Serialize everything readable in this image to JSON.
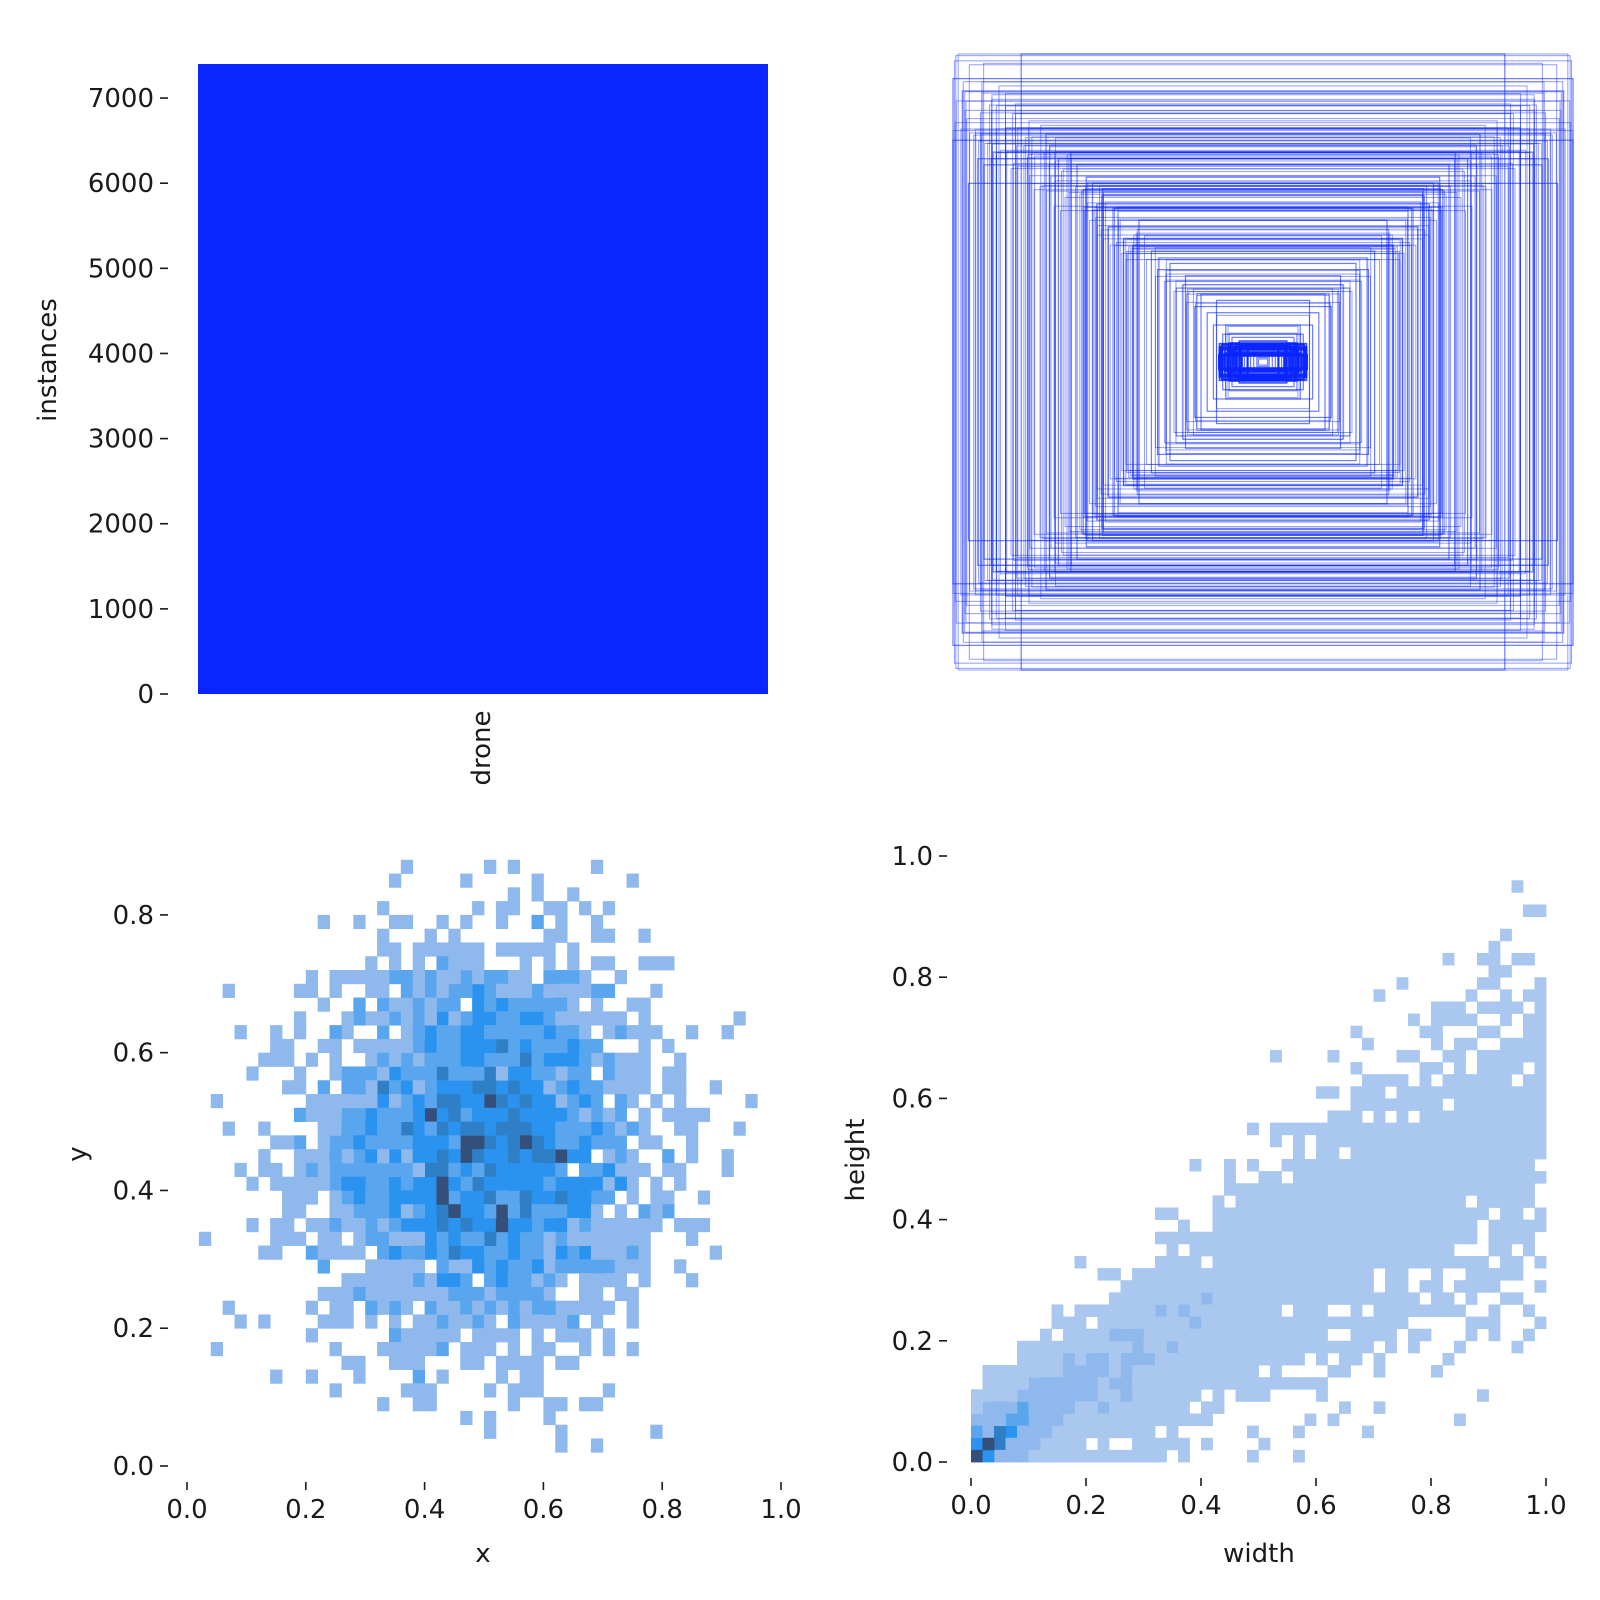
{
  "chart_data": [
    {
      "type": "bar",
      "categories": [
        "drone"
      ],
      "values": [
        7400
      ],
      "xlabel": "",
      "ylabel": "instances",
      "ylim": [
        0,
        7400
      ],
      "yticks": [
        0,
        1000,
        2000,
        3000,
        4000,
        5000,
        6000,
        7000
      ],
      "ytick_labels": [
        "0",
        "1000",
        "2000",
        "3000",
        "4000",
        "5000",
        "6000",
        "7000"
      ],
      "color": "#0a26ff",
      "grid": false
    },
    {
      "type": "scatter",
      "title": "",
      "description_only_visual": false,
      "box_color": "#0a26ff",
      "box_sizes": [
        [
          0.78,
          1.0
        ],
        [
          1.0,
          0.92
        ],
        [
          0.97,
          0.88
        ],
        [
          0.83,
          0.76
        ],
        [
          0.86,
          0.68
        ],
        [
          1.0,
          0.72
        ],
        [
          0.62,
          0.68
        ],
        [
          0.57,
          0.6
        ],
        [
          0.55,
          0.58
        ],
        [
          0.52,
          0.54
        ],
        [
          0.9,
          0.64
        ],
        [
          0.7,
          0.74
        ],
        [
          0.5,
          0.44
        ],
        [
          0.45,
          0.4
        ],
        [
          0.4,
          0.46
        ],
        [
          0.36,
          0.36
        ],
        [
          0.3,
          0.32
        ],
        [
          0.25,
          0.28
        ],
        [
          0.2,
          0.22
        ],
        [
          0.18,
          0.16
        ],
        [
          0.15,
          0.2
        ],
        [
          0.12,
          0.12
        ],
        [
          0.1,
          0.08
        ],
        [
          0.08,
          0.06
        ],
        [
          0.06,
          0.05
        ],
        [
          0.05,
          0.04
        ],
        [
          0.04,
          0.03
        ],
        [
          0.03,
          0.02
        ],
        [
          0.02,
          0.015
        ],
        [
          0.015,
          0.01
        ],
        [
          0.95,
          0.58
        ],
        [
          0.92,
          0.66
        ],
        [
          0.66,
          0.66
        ],
        [
          0.6,
          0.64
        ],
        [
          0.58,
          0.56
        ],
        [
          0.48,
          0.5
        ],
        [
          0.42,
          0.38
        ],
        [
          0.34,
          0.3
        ],
        [
          0.28,
          0.24
        ],
        [
          0.22,
          0.18
        ],
        [
          0.11,
          0.06
        ],
        [
          0.09,
          0.05
        ],
        [
          0.07,
          0.06
        ],
        [
          0.13,
          0.09
        ],
        [
          0.16,
          0.12
        ]
      ]
    },
    {
      "type": "heatmap",
      "xlabel": "x",
      "ylabel": "y",
      "xlim": [
        0.0,
        1.0
      ],
      "ylim": [
        0.0,
        0.9
      ],
      "xticks": [
        0.0,
        0.2,
        0.4,
        0.6,
        0.8,
        1.0
      ],
      "xtick_labels": [
        "0.0",
        "0.2",
        "0.4",
        "0.6",
        "0.8",
        "1.0"
      ],
      "yticks": [
        0.0,
        0.2,
        0.4,
        0.6,
        0.8
      ],
      "ytick_labels": [
        "0.0",
        "0.2",
        "0.4",
        "0.6",
        "0.8"
      ],
      "bins": 50,
      "center": [
        0.5,
        0.46
      ],
      "spread": [
        0.14,
        0.14
      ],
      "colors": [
        "#aac8ef",
        "#8fb9ec",
        "#5aa6ee",
        "#2a93f0",
        "#2f7fc6",
        "#334f7a"
      ]
    },
    {
      "type": "heatmap",
      "xlabel": "width",
      "ylabel": "height",
      "xlim": [
        0.0,
        1.0
      ],
      "ylim": [
        0.0,
        1.0
      ],
      "xticks": [
        0.0,
        0.2,
        0.4,
        0.6,
        0.8,
        1.0
      ],
      "xtick_labels": [
        "0.0",
        "0.2",
        "0.4",
        "0.6",
        "0.8",
        "1.0"
      ],
      "yticks": [
        0.0,
        0.2,
        0.4,
        0.6,
        0.8,
        1.0
      ],
      "ytick_labels": [
        "0.0",
        "0.2",
        "0.4",
        "0.6",
        "0.8",
        "1.0"
      ],
      "bins": 50,
      "trend_slope": 0.55,
      "colors": [
        "#aac8ef",
        "#8fb9ec",
        "#5aa6ee",
        "#2a93f0",
        "#2f7fc6",
        "#334f7a"
      ]
    }
  ]
}
